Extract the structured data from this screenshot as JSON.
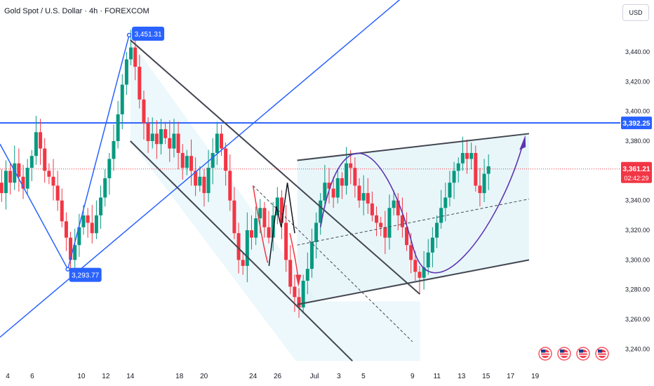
{
  "header": {
    "title": "Gold Spot / U.S. Dollar · 4h · FOREXCOM",
    "currency": "USD"
  },
  "colors": {
    "up": "#089981",
    "down": "#f23645",
    "blue_line": "#2962ff",
    "channel_line": "#434651",
    "channel_fill": "#e0f3f8",
    "arc": "#5e35b1",
    "price_label": "#f23645",
    "level_label": "#2962ff"
  },
  "markers": {
    "resistance": "3,392.25",
    "current_price": "3,361.21",
    "countdown": "02:42:29"
  },
  "callouts": [
    {
      "label": "3,451.31",
      "value": 3451.31,
      "day": 13.9
    },
    {
      "label": "3,293.77",
      "value": 3293.77,
      "day": 8.9
    }
  ],
  "event_icons": [
    "us-flag-icon",
    "us-flag-icon",
    "us-flag-icon",
    "us-flag-icon"
  ],
  "chart_data": {
    "type": "candlestick",
    "title": "Gold Spot / U.S. Dollar · 4h · FOREXCOM",
    "ylim": [
      3230,
      3470
    ],
    "y_ticks": [
      {
        "value": 3440,
        "label": "3,440.00"
      },
      {
        "value": 3420,
        "label": "3,420.00"
      },
      {
        "value": 3400,
        "label": "3,400.00"
      },
      {
        "value": 3380,
        "label": "3,380.00"
      },
      {
        "value": 3340,
        "label": "3,340.00"
      },
      {
        "value": 3320,
        "label": "3,320.00"
      },
      {
        "value": 3300,
        "label": "3,300.00"
      },
      {
        "value": 3280,
        "label": "3,280.00"
      },
      {
        "value": 3260,
        "label": "3,260.00"
      },
      {
        "value": 3240,
        "label": "3,240.00"
      }
    ],
    "x_ticks": [
      {
        "day": 4,
        "label": "4"
      },
      {
        "day": 6,
        "label": "6"
      },
      {
        "day": 10,
        "label": "10"
      },
      {
        "day": 12,
        "label": "12"
      },
      {
        "day": 14,
        "label": "14"
      },
      {
        "day": 18,
        "label": "18"
      },
      {
        "day": 20,
        "label": "20"
      },
      {
        "day": 24,
        "label": "24"
      },
      {
        "day": 26,
        "label": "26"
      },
      {
        "day": 29,
        "label": "Jul"
      },
      {
        "day": 31,
        "label": "3"
      },
      {
        "day": 33,
        "label": "5"
      },
      {
        "day": 37,
        "label": "9"
      },
      {
        "day": 39,
        "label": "11"
      },
      {
        "day": 41,
        "label": "13"
      },
      {
        "day": 43,
        "label": "15"
      },
      {
        "day": 45,
        "label": "17"
      },
      {
        "day": 47,
        "label": "19"
      }
    ],
    "resistance_level": 3392.25,
    "current_price": 3361.21,
    "closes": [
      3358,
      3352,
      3345,
      3360,
      3352,
      3365,
      3356,
      3348,
      3362,
      3370,
      3386,
      3375,
      3360,
      3356,
      3350,
      3340,
      3326,
      3315,
      3300,
      3310,
      3322,
      3330,
      3325,
      3318,
      3330,
      3342,
      3355,
      3368,
      3380,
      3398,
      3418,
      3435,
      3443,
      3430,
      3408,
      3392,
      3380,
      3385,
      3378,
      3388,
      3382,
      3375,
      3385,
      3372,
      3362,
      3370,
      3360,
      3350,
      3356,
      3345,
      3362,
      3372,
      3385,
      3375,
      3360,
      3340,
      3318,
      3300,
      3296,
      3320,
      3315,
      3328,
      3335,
      3322,
      3315,
      3330,
      3342,
      3325,
      3300,
      3282,
      3275,
      3268,
      3286,
      3294,
      3312,
      3325,
      3340,
      3352,
      3348,
      3342,
      3355,
      3350,
      3365,
      3362,
      3350,
      3340,
      3345,
      3338,
      3330,
      3325,
      3322,
      3315,
      3335,
      3340,
      3330,
      3322,
      3310,
      3300,
      3292,
      3288,
      3295,
      3305,
      3315,
      3325,
      3335,
      3342,
      3352,
      3360,
      3365,
      3372,
      3368,
      3372,
      3350,
      3345,
      3358,
      3363
    ],
    "day_start": 2.8,
    "day_step": 0.3513
  }
}
